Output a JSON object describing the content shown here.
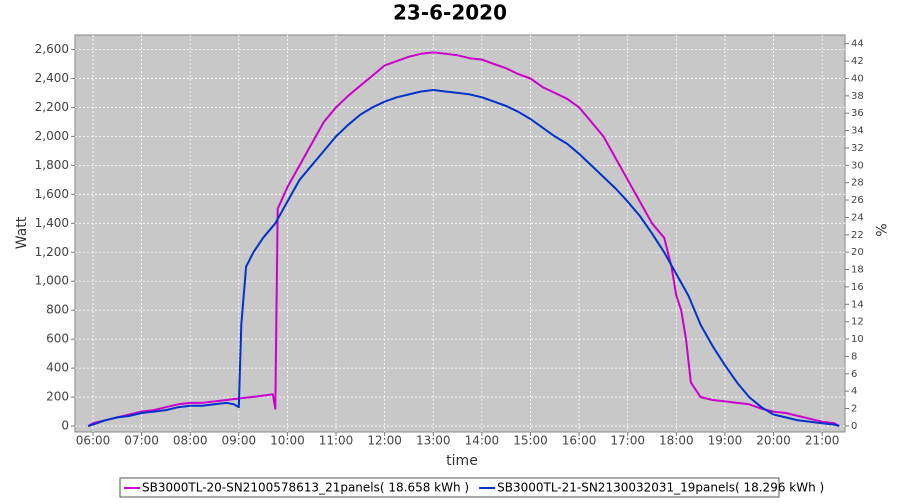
{
  "chart_data": {
    "type": "line",
    "title": "23-6-2020",
    "x_label": "time",
    "y_label": "Watt",
    "y2_label": "%",
    "grid": true,
    "legend": "bottom",
    "xlim": [
      5.63,
      21.47
    ],
    "xticks": [
      {
        "value": 6,
        "label": "06:00"
      },
      {
        "value": 7,
        "label": "07:00"
      },
      {
        "value": 8,
        "label": "08:00"
      },
      {
        "value": 9,
        "label": "09:00"
      },
      {
        "value": 10,
        "label": "10:00"
      },
      {
        "value": 11,
        "label": "11:00"
      },
      {
        "value": 12,
        "label": "12:00"
      },
      {
        "value": 13,
        "label": "13:00"
      },
      {
        "value": 14,
        "label": "14:00"
      },
      {
        "value": 15,
        "label": "15:00"
      },
      {
        "value": 16,
        "label": "16:00"
      },
      {
        "value": 17,
        "label": "17:00"
      },
      {
        "value": 18,
        "label": "18:00"
      },
      {
        "value": 19,
        "label": "19:00"
      },
      {
        "value": 20,
        "label": "20:00"
      },
      {
        "value": 21,
        "label": "21:00"
      }
    ],
    "ylim": [
      -41,
      2700
    ],
    "yticks": [
      0,
      200,
      400,
      600,
      800,
      {
        "value": 1000,
        "label": "1,000"
      },
      {
        "value": 1200,
        "label": "1,200"
      },
      {
        "value": 1400,
        "label": "1,400"
      },
      {
        "value": 1600,
        "label": "1,600"
      },
      {
        "value": 1800,
        "label": "1,800"
      },
      {
        "value": 2000,
        "label": "2,000"
      },
      {
        "value": 2200,
        "label": "2,200"
      },
      {
        "value": 2400,
        "label": "2,400"
      },
      {
        "value": 2600,
        "label": "2,600"
      }
    ],
    "y2lim": [
      -0.7,
      45
    ],
    "y2ticks": [
      0,
      2,
      4,
      6,
      8,
      10,
      12,
      14,
      16,
      18,
      20,
      22,
      24,
      26,
      28,
      30,
      32,
      34,
      36,
      38,
      40,
      42,
      44
    ],
    "series": [
      {
        "name": "SB3000TL-20-SN2100578613_21panels( 18.658 kWh )",
        "color": "#cc00cc",
        "x": [
          5.9,
          6.0,
          6.25,
          6.5,
          6.75,
          7.0,
          7.25,
          7.5,
          7.75,
          8.0,
          8.25,
          8.5,
          8.75,
          9.0,
          9.25,
          9.5,
          9.7,
          9.75,
          9.8,
          10.0,
          10.25,
          10.5,
          10.75,
          11.0,
          11.25,
          11.5,
          11.75,
          12.0,
          12.25,
          12.5,
          12.75,
          13.0,
          13.25,
          13.5,
          13.75,
          14.0,
          14.25,
          14.5,
          14.75,
          15.0,
          15.25,
          15.5,
          15.75,
          16.0,
          16.25,
          16.5,
          16.75,
          17.0,
          17.25,
          17.5,
          17.75,
          17.9,
          18.0,
          18.1,
          18.2,
          18.3,
          18.5,
          18.75,
          19.0,
          19.25,
          19.5,
          19.75,
          20.0,
          20.25,
          20.5,
          20.75,
          21.0,
          21.25,
          21.35
        ],
        "values": [
          0,
          20,
          40,
          60,
          80,
          100,
          110,
          130,
          150,
          160,
          160,
          170,
          180,
          190,
          200,
          210,
          220,
          120,
          1500,
          1650,
          1800,
          1950,
          2100,
          2200,
          2280,
          2350,
          2420,
          2490,
          2520,
          2550,
          2570,
          2580,
          2570,
          2560,
          2540,
          2530,
          2500,
          2470,
          2430,
          2400,
          2340,
          2300,
          2260,
          2200,
          2100,
          2000,
          1850,
          1700,
          1550,
          1400,
          1300,
          1100,
          900,
          800,
          600,
          300,
          200,
          180,
          170,
          160,
          150,
          120,
          100,
          90,
          70,
          50,
          30,
          20,
          0
        ]
      },
      {
        "name": "SB3000TL-21-SN2130032031_19panels( 18.296 kWh )",
        "color": "#0033cc",
        "x": [
          5.9,
          6.0,
          6.25,
          6.5,
          6.75,
          7.0,
          7.25,
          7.5,
          7.75,
          8.0,
          8.25,
          8.5,
          8.75,
          8.9,
          9.0,
          9.05,
          9.15,
          9.3,
          9.5,
          9.75,
          10.0,
          10.25,
          10.5,
          10.75,
          11.0,
          11.25,
          11.5,
          11.75,
          12.0,
          12.25,
          12.5,
          12.75,
          13.0,
          13.25,
          13.5,
          13.75,
          14.0,
          14.25,
          14.5,
          14.75,
          15.0,
          15.25,
          15.5,
          15.75,
          16.0,
          16.25,
          16.5,
          16.75,
          17.0,
          17.25,
          17.5,
          17.75,
          18.0,
          18.25,
          18.5,
          18.75,
          19.0,
          19.25,
          19.5,
          19.75,
          20.0,
          20.25,
          20.5,
          20.75,
          21.0,
          21.25,
          21.35
        ],
        "values": [
          0,
          10,
          40,
          60,
          70,
          90,
          100,
          110,
          130,
          140,
          140,
          150,
          160,
          150,
          130,
          700,
          1100,
          1200,
          1300,
          1400,
          1550,
          1700,
          1800,
          1900,
          2000,
          2080,
          2150,
          2200,
          2240,
          2270,
          2290,
          2310,
          2320,
          2310,
          2300,
          2290,
          2270,
          2240,
          2210,
          2170,
          2120,
          2060,
          2000,
          1950,
          1880,
          1800,
          1720,
          1640,
          1550,
          1450,
          1330,
          1200,
          1050,
          900,
          700,
          550,
          420,
          300,
          200,
          130,
          80,
          60,
          40,
          30,
          20,
          10,
          0
        ]
      }
    ]
  }
}
